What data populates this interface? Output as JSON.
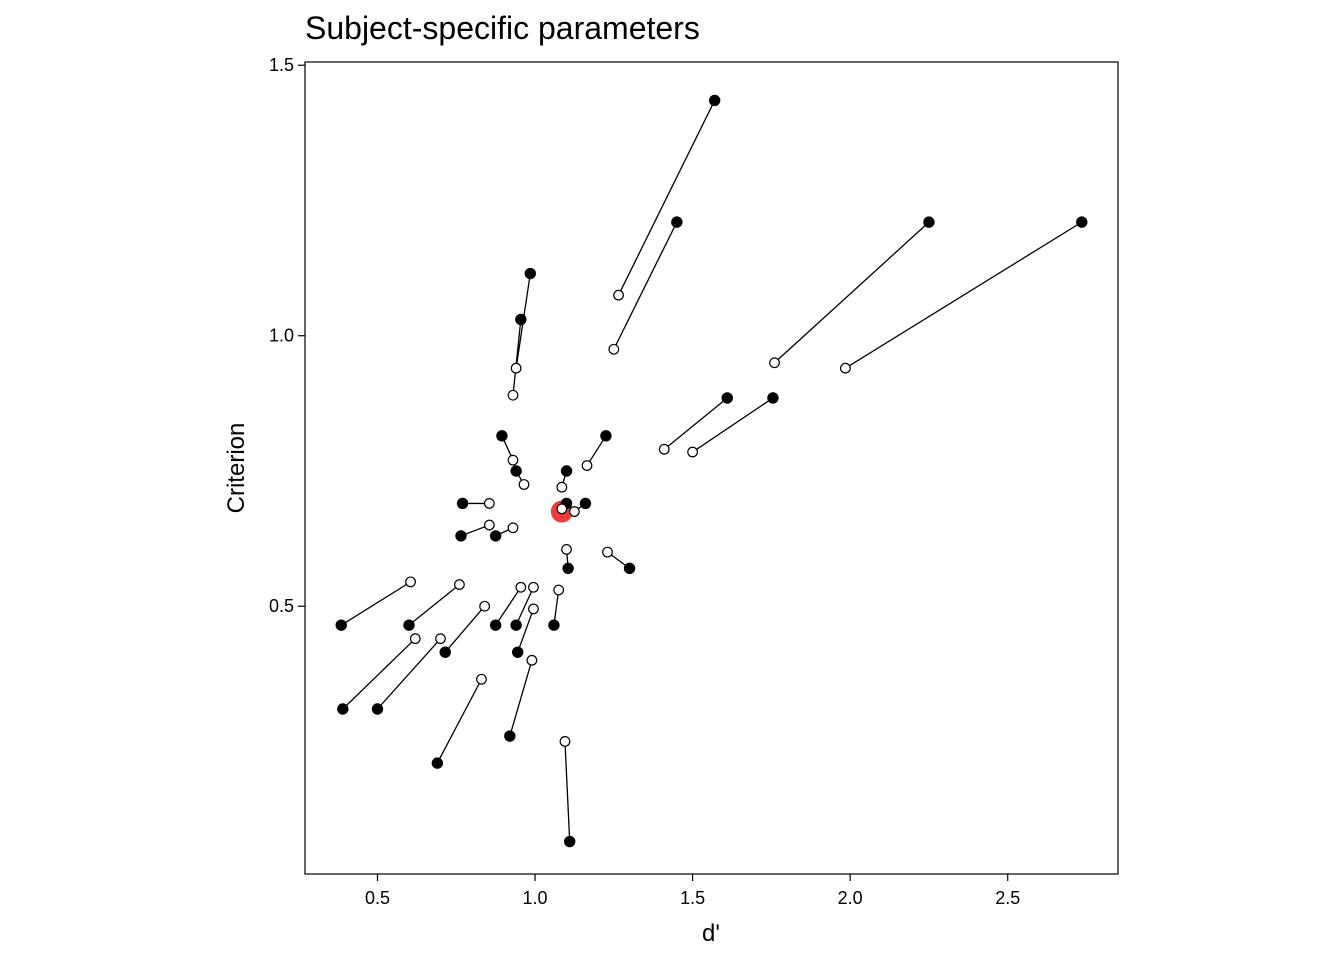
{
  "chart_data": {
    "type": "scatter",
    "title": "Subject-specific parameters",
    "xlabel": "d'",
    "ylabel": "Criterion",
    "xlim": [
      0.27,
      2.85
    ],
    "ylim": [
      0.005,
      1.506
    ],
    "xticks": [
      "0.5",
      "1.0",
      "1.5",
      "2.0",
      "2.5"
    ],
    "yticks": [
      "0.5",
      "1.0",
      "1.5"
    ],
    "grid": false,
    "legend": "none",
    "colors": {
      "raw_fill": "#000000",
      "shrunk_fill": "#ffffff",
      "stroke": "#000000",
      "group_mean": "#f03030"
    },
    "series": [
      {
        "marker": "filled-circle",
        "points": [
          [
            1.57,
            1.435
          ],
          [
            1.45,
            1.21
          ],
          [
            0.985,
            1.115
          ],
          [
            0.955,
            1.03
          ],
          [
            2.25,
            1.21
          ],
          [
            2.735,
            1.21
          ],
          [
            1.61,
            0.885
          ],
          [
            1.755,
            0.885
          ],
          [
            0.895,
            0.815
          ],
          [
            0.94,
            0.75
          ],
          [
            1.225,
            0.815
          ],
          [
            1.1,
            0.75
          ],
          [
            0.77,
            0.69
          ],
          [
            1.1,
            0.69
          ],
          [
            1.16,
            0.69
          ],
          [
            0.765,
            0.63
          ],
          [
            0.875,
            0.63
          ],
          [
            1.3,
            0.57
          ],
          [
            1.105,
            0.57
          ],
          [
            0.385,
            0.465
          ],
          [
            0.6,
            0.465
          ],
          [
            0.875,
            0.465
          ],
          [
            0.94,
            0.465
          ],
          [
            1.06,
            0.465
          ],
          [
            0.715,
            0.415
          ],
          [
            0.945,
            0.415
          ],
          [
            0.39,
            0.31
          ],
          [
            0.5,
            0.31
          ],
          [
            0.92,
            0.26
          ],
          [
            0.69,
            0.21
          ],
          [
            1.11,
            0.065
          ]
        ]
      },
      {
        "marker": "open-circle",
        "points": [
          [
            1.265,
            1.075
          ],
          [
            1.25,
            0.975
          ],
          [
            0.94,
            0.94
          ],
          [
            0.93,
            0.89
          ],
          [
            1.76,
            0.95
          ],
          [
            1.985,
            0.94
          ],
          [
            1.41,
            0.79
          ],
          [
            1.5,
            0.785
          ],
          [
            0.93,
            0.77
          ],
          [
            0.965,
            0.725
          ],
          [
            1.165,
            0.76
          ],
          [
            1.085,
            0.72
          ],
          [
            0.855,
            0.69
          ],
          [
            1.085,
            0.68
          ],
          [
            1.125,
            0.675
          ],
          [
            0.855,
            0.65
          ],
          [
            0.93,
            0.645
          ],
          [
            1.23,
            0.6
          ],
          [
            1.1,
            0.605
          ],
          [
            0.605,
            0.545
          ],
          [
            0.76,
            0.54
          ],
          [
            0.955,
            0.535
          ],
          [
            0.995,
            0.535
          ],
          [
            1.075,
            0.53
          ],
          [
            0.84,
            0.5
          ],
          [
            0.995,
            0.495
          ],
          [
            0.62,
            0.44
          ],
          [
            0.7,
            0.44
          ],
          [
            0.99,
            0.4
          ],
          [
            0.83,
            0.365
          ],
          [
            1.095,
            0.25
          ]
        ]
      }
    ],
    "group_mean": [
      1.085,
      0.675
    ]
  }
}
